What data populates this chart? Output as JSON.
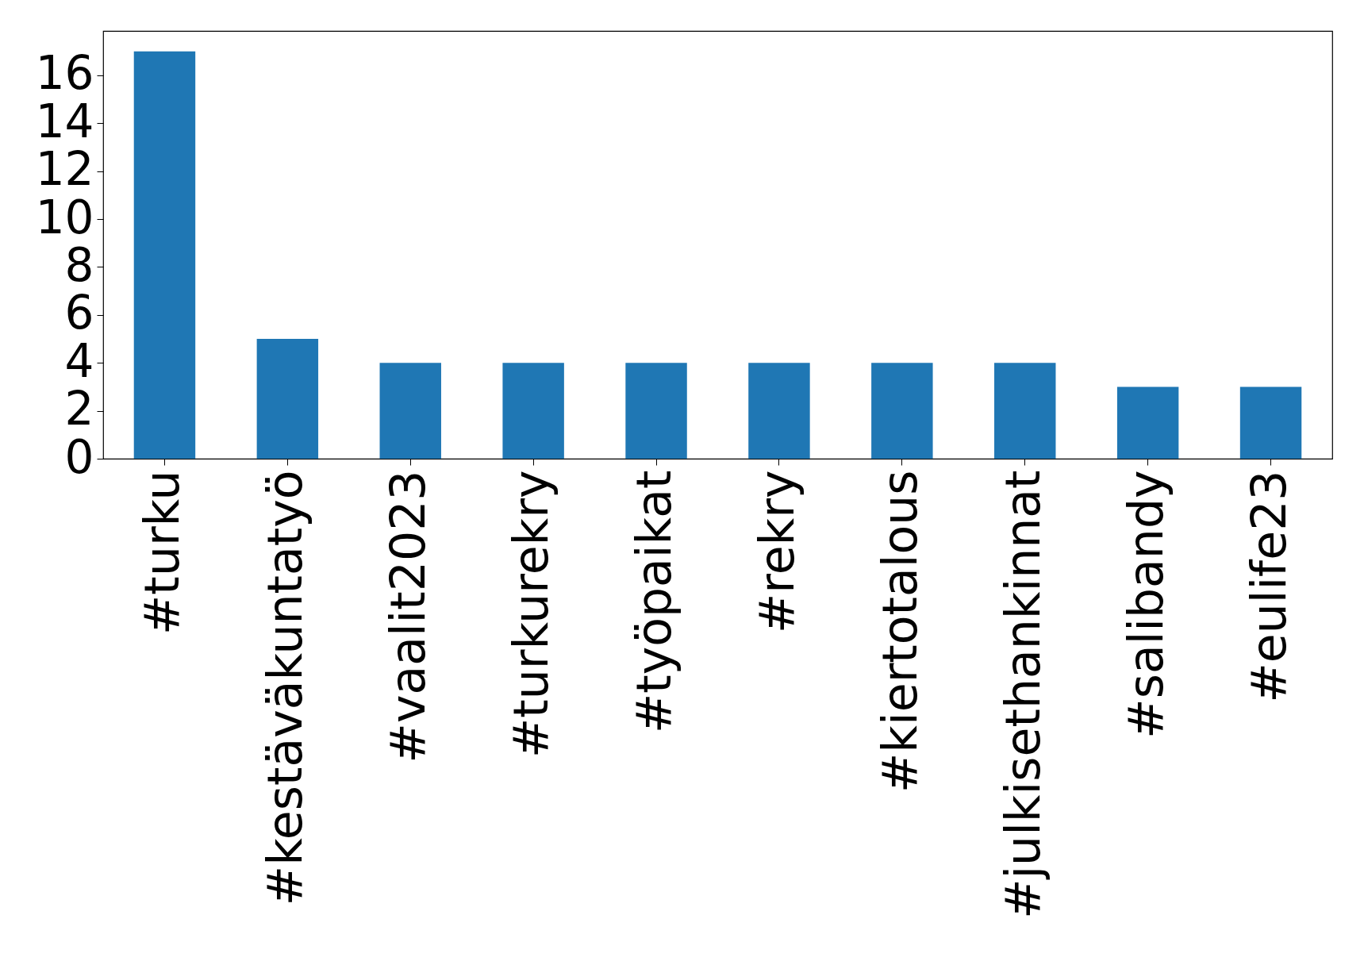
{
  "chart_data": {
    "type": "bar",
    "categories": [
      "#turku",
      "#kestäväkuntatyö",
      "#vaalit2023",
      "#turkurekry",
      "#työpaikat",
      "#rekry",
      "#kiertotalous",
      "#julkisethankinnat",
      "#salibandy",
      "#eulife23"
    ],
    "values": [
      17,
      5,
      4,
      4,
      4,
      4,
      4,
      4,
      3,
      3
    ],
    "color": "#1f77b4",
    "ylim": [
      0,
      17.85
    ],
    "yticks": [
      0,
      2,
      4,
      6,
      8,
      10,
      12,
      14,
      16
    ],
    "grid": false
  }
}
